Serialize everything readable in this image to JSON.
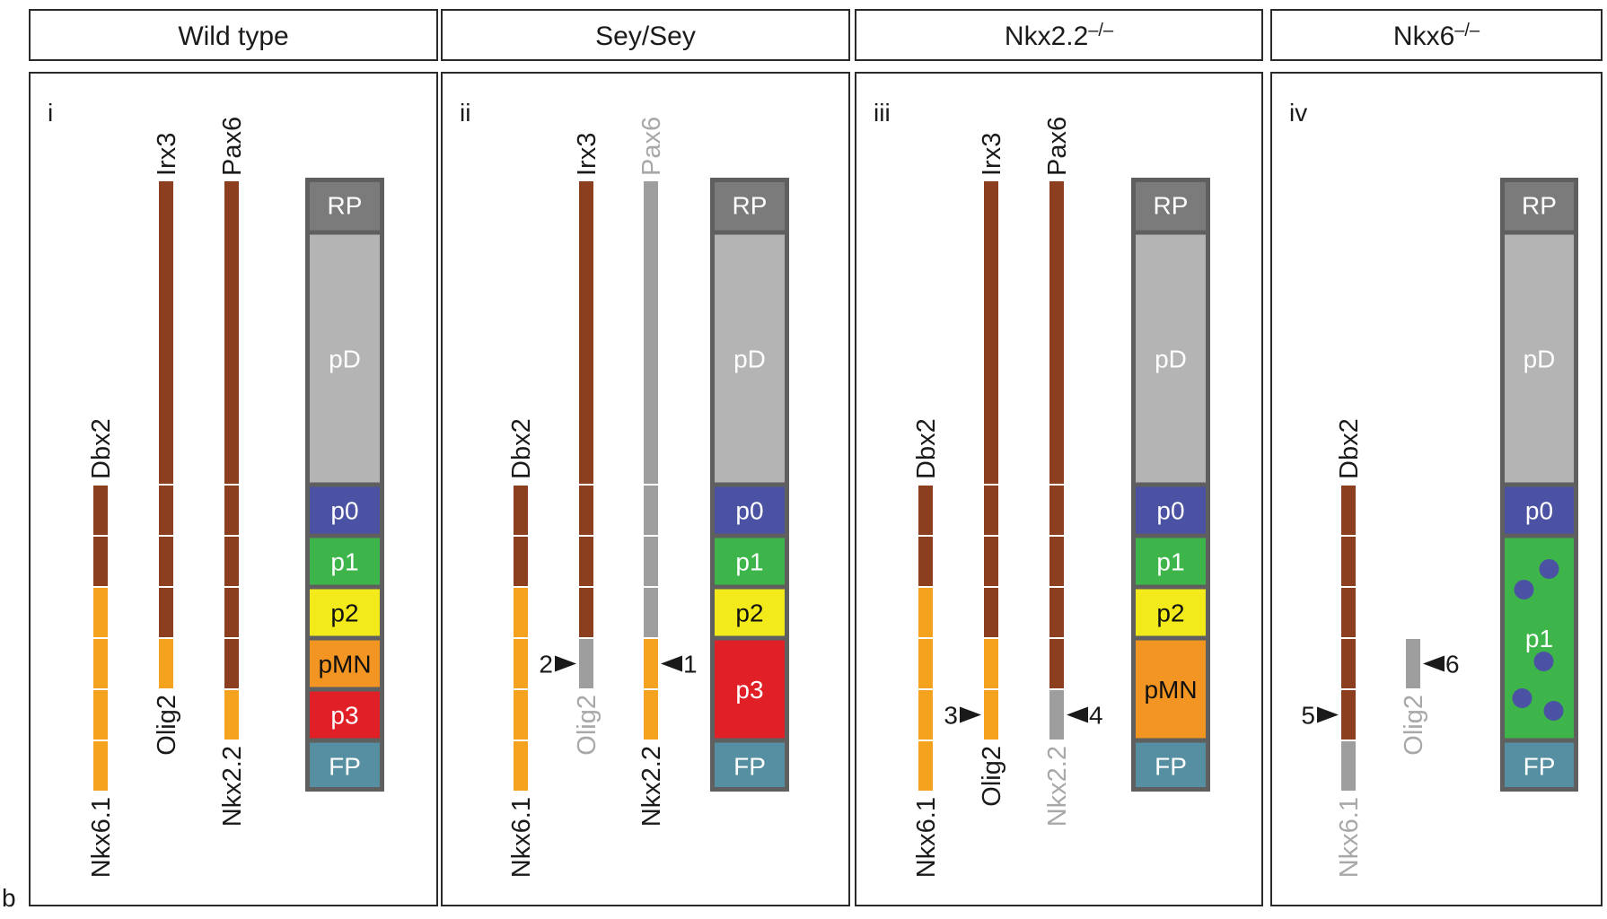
{
  "figure_label": "b",
  "colors": {
    "brown": "#8b3f1f",
    "orange": "#f5a21f",
    "gray_bar": "#9e9e9e",
    "label_dark": "#1a1a1a",
    "label_lost": "#a8a8a8",
    "box_border": "#5f5f5f",
    "RP": "#7b7b7b",
    "pD": "#b4b4b4",
    "p0": "#4b52a3",
    "p1": "#3eb54a",
    "p2": "#f2ea1a",
    "pMN": "#f39522",
    "p3": "#e11f26",
    "FP": "#568fa1",
    "dot": "#4b52a3"
  },
  "panels": [
    {
      "header": "Wild type",
      "header_sup": "",
      "roman": "i",
      "zones": [
        {
          "label": "RP",
          "span": 1,
          "text_color": "#ffffff"
        },
        {
          "label": "pD",
          "span": 1,
          "text_color": "#ffffff"
        },
        {
          "label": "p0",
          "span": 1,
          "text_color": "#ffffff"
        },
        {
          "label": "p1",
          "span": 1,
          "text_color": "#ffffff"
        },
        {
          "label": "p2",
          "span": 1,
          "text_color": "#111111"
        },
        {
          "label": "pMN",
          "span": 1,
          "text_color": "#111111"
        },
        {
          "label": "p3",
          "span": 1,
          "text_color": "#ffffff"
        },
        {
          "label": "FP",
          "span": 1,
          "text_color": "#ffffff"
        }
      ],
      "bars": [
        {
          "top_label": "Dbx2",
          "top_lost": false,
          "bottom_label": "Nkx6.1",
          "bottom_lost": false,
          "dorsal": "none",
          "segments": [
            "brown",
            "brown",
            "orange",
            "orange",
            "orange",
            "orange"
          ],
          "start_zone": "p0"
        },
        {
          "top_label": "Irx3",
          "top_lost": false,
          "bottom_label": "Olig2",
          "bottom_lost": false,
          "dorsal": "brown",
          "segments": [
            "brown",
            "brown",
            "brown",
            "orange"
          ],
          "start_zone": "p0"
        },
        {
          "top_label": "Pax6",
          "top_lost": false,
          "bottom_label": "Nkx2.2",
          "bottom_lost": false,
          "dorsal": "brown",
          "segments": [
            "brown",
            "brown",
            "brown",
            "brown",
            "orange"
          ],
          "start_zone": "p0"
        }
      ],
      "arrows": []
    },
    {
      "header": "Sey/Sey",
      "header_sup": "",
      "roman": "ii",
      "zones": [
        {
          "label": "RP",
          "span": 1,
          "text_color": "#ffffff"
        },
        {
          "label": "pD",
          "span": 1,
          "text_color": "#ffffff"
        },
        {
          "label": "p0",
          "span": 1,
          "text_color": "#ffffff"
        },
        {
          "label": "p1",
          "span": 1,
          "text_color": "#ffffff"
        },
        {
          "label": "p2",
          "span": 1,
          "text_color": "#111111"
        },
        {
          "label": "p3",
          "span": 2,
          "text_color": "#ffffff"
        },
        {
          "label": "FP",
          "span": 1,
          "text_color": "#ffffff"
        }
      ],
      "bars": [
        {
          "top_label": "Dbx2",
          "top_lost": false,
          "bottom_label": "Nkx6.1",
          "bottom_lost": false,
          "dorsal": "none",
          "segments": [
            "brown",
            "brown",
            "orange",
            "orange",
            "orange",
            "orange"
          ],
          "start_zone": "p0"
        },
        {
          "top_label": "Irx3",
          "top_lost": false,
          "bottom_label": "Olig2",
          "bottom_lost": true,
          "dorsal": "brown",
          "segments": [
            "brown",
            "brown",
            "brown",
            "gray"
          ],
          "start_zone": "p0"
        },
        {
          "top_label": "Pax6",
          "top_lost": true,
          "bottom_label": "Nkx2.2",
          "bottom_lost": false,
          "dorsal": "gray",
          "segments": [
            "gray",
            "gray",
            "gray",
            "orange",
            "orange"
          ],
          "start_zone": "p0"
        }
      ],
      "arrows": [
        {
          "number": "2",
          "direction": "right",
          "bar": 1,
          "segment": 3
        },
        {
          "number": "1",
          "direction": "left",
          "bar": 2,
          "segment": 3
        }
      ]
    },
    {
      "header": "Nkx2.2",
      "header_sup": "–/–",
      "roman": "iii",
      "zones": [
        {
          "label": "RP",
          "span": 1,
          "text_color": "#ffffff"
        },
        {
          "label": "pD",
          "span": 1,
          "text_color": "#ffffff"
        },
        {
          "label": "p0",
          "span": 1,
          "text_color": "#ffffff"
        },
        {
          "label": "p1",
          "span": 1,
          "text_color": "#ffffff"
        },
        {
          "label": "p2",
          "span": 1,
          "text_color": "#111111"
        },
        {
          "label": "pMN",
          "span": 2,
          "text_color": "#111111"
        },
        {
          "label": "FP",
          "span": 1,
          "text_color": "#ffffff"
        }
      ],
      "bars": [
        {
          "top_label": "Dbx2",
          "top_lost": false,
          "bottom_label": "Nkx6.1",
          "bottom_lost": false,
          "dorsal": "none",
          "segments": [
            "brown",
            "brown",
            "orange",
            "orange",
            "orange",
            "orange"
          ],
          "start_zone": "p0"
        },
        {
          "top_label": "Irx3",
          "top_lost": false,
          "bottom_label": "Olig2",
          "bottom_lost": false,
          "dorsal": "brown",
          "segments": [
            "brown",
            "brown",
            "brown",
            "orange",
            "orange"
          ],
          "start_zone": "p0"
        },
        {
          "top_label": "Pax6",
          "top_lost": false,
          "bottom_label": "Nkx2.2",
          "bottom_lost": true,
          "dorsal": "brown",
          "segments": [
            "brown",
            "brown",
            "brown",
            "brown",
            "gray"
          ],
          "start_zone": "p0"
        }
      ],
      "arrows": [
        {
          "number": "3",
          "direction": "right",
          "bar": 1,
          "segment": 4
        },
        {
          "number": "4",
          "direction": "left",
          "bar": 2,
          "segment": 4
        }
      ]
    },
    {
      "header": "Nkx6",
      "header_sup": "–/–",
      "roman": "iv",
      "zones": [
        {
          "label": "RP",
          "span": 1,
          "text_color": "#ffffff"
        },
        {
          "label": "pD",
          "span": 1,
          "text_color": "#ffffff"
        },
        {
          "label": "p0",
          "span": 1,
          "text_color": "#ffffff"
        },
        {
          "label": "p1",
          "span": 4,
          "text_color": "#ffffff",
          "dots": 5
        },
        {
          "label": "FP",
          "span": 1,
          "text_color": "#ffffff"
        }
      ],
      "bars": [
        {
          "top_label": "Dbx2",
          "top_lost": false,
          "bottom_label": "Nkx6.1",
          "bottom_lost": true,
          "dorsal": "none",
          "segments": [
            "brown",
            "brown",
            "brown",
            "brown",
            "brown",
            "gray"
          ],
          "start_zone": "p0"
        },
        {
          "top_label": "",
          "top_lost": false,
          "bottom_label": "Olig2",
          "bottom_lost": true,
          "dorsal": "none",
          "segments": [
            "gray"
          ],
          "start_zone": "pMN"
        }
      ],
      "arrows": [
        {
          "number": "5",
          "direction": "right",
          "bar": 0,
          "segment": 4
        },
        {
          "number": "6",
          "direction": "left",
          "bar": 1,
          "segment": 0
        }
      ]
    }
  ]
}
